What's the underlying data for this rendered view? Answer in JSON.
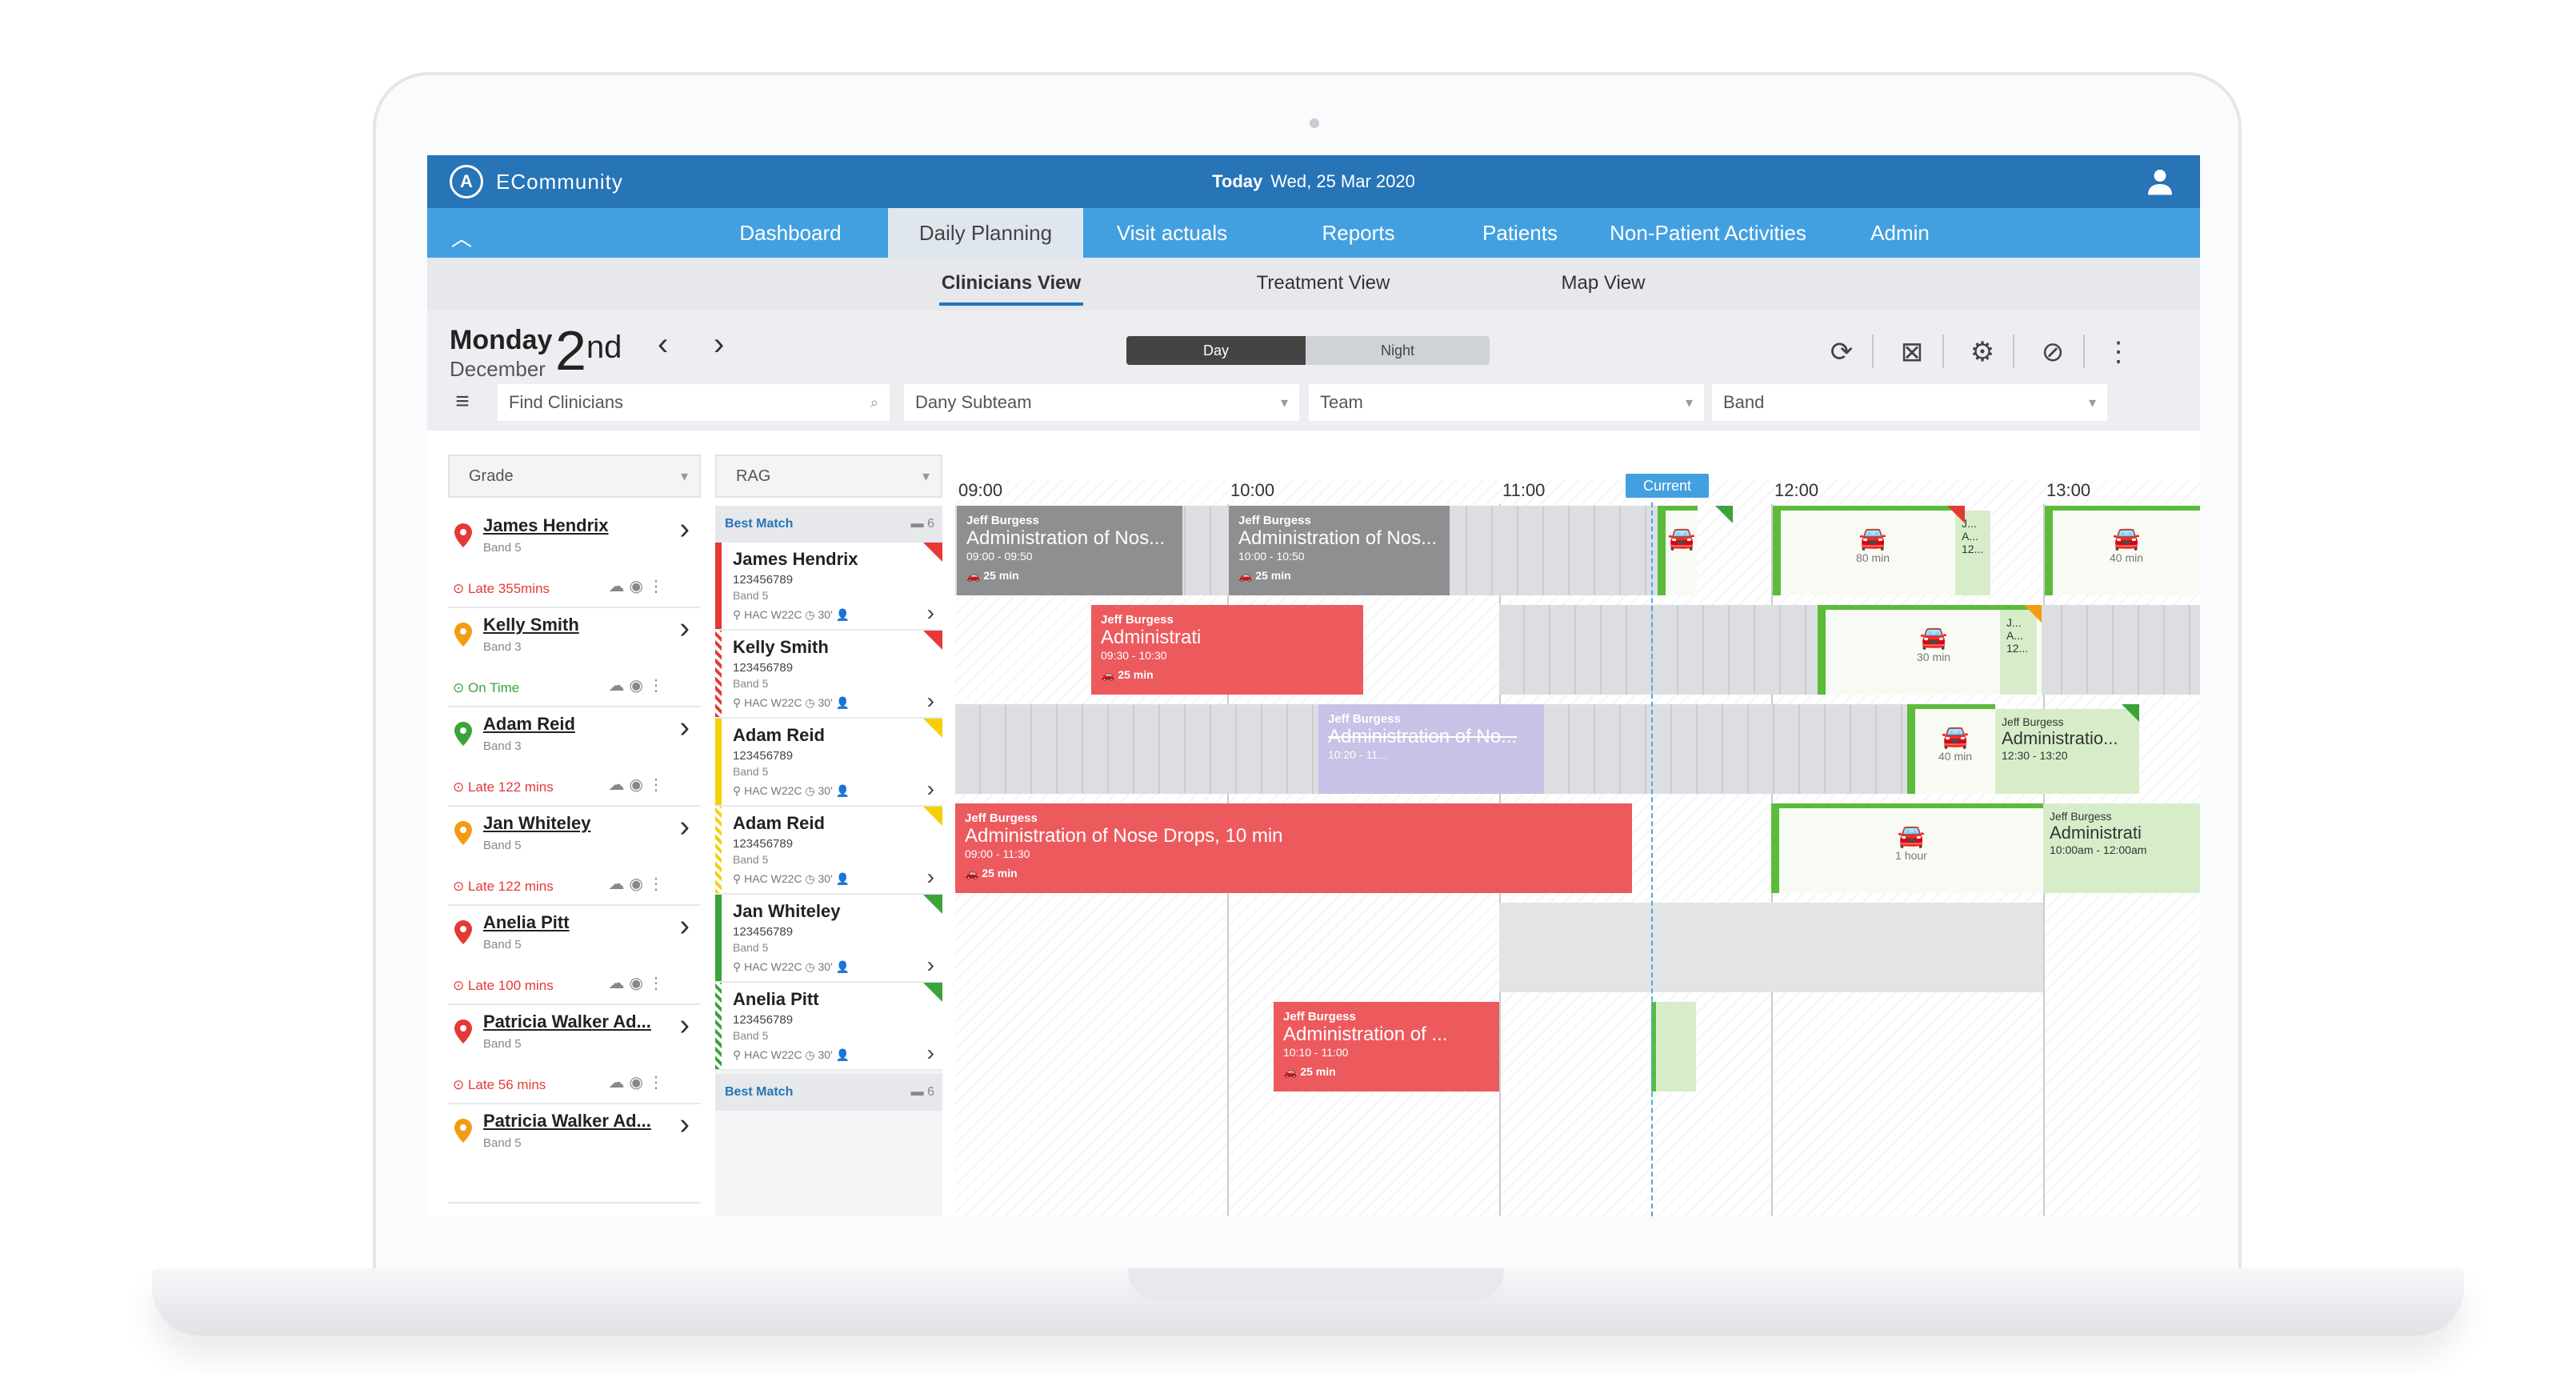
{
  "app": {
    "name": "ECommunity",
    "today_label": "Today",
    "today_date": "Wed, 25 Mar 2020"
  },
  "nav": {
    "items": [
      "Dashboard",
      "Daily Planning",
      "Visit actuals",
      "Reports",
      "Patients",
      "Non-Patient Activities",
      "Admin"
    ],
    "active": "Daily Planning"
  },
  "subnav": {
    "items": [
      "Clinicians View",
      "Treatment View",
      "Map View"
    ],
    "active": "Clinicians View"
  },
  "date": {
    "day_name": "Monday",
    "month": "December",
    "day_number": "2",
    "suffix": "nd"
  },
  "toggle": {
    "day": "Day",
    "night": "Night"
  },
  "filters": {
    "search_placeholder": "Find Clinicians",
    "subteam": "Dany Subteam",
    "team": "Team",
    "band": "Band",
    "grade": "Grade",
    "rag": "RAG"
  },
  "clinicians": [
    {
      "name": "James Hendrix",
      "band": "Band 5",
      "status": "Late 355mins",
      "status_type": "late",
      "pin": "#e53935"
    },
    {
      "name": "Kelly Smith",
      "band": "Band 3",
      "status": "On Time",
      "status_type": "ok",
      "pin": "#f39c12"
    },
    {
      "name": "Adam Reid",
      "band": "Band 3",
      "status": "Late 122 mins",
      "status_type": "late",
      "pin": "#3aa33a"
    },
    {
      "name": "Jan Whiteley",
      "band": "Band 5",
      "status": "Late 122 mins",
      "status_type": "late",
      "pin": "#f39c12"
    },
    {
      "name": "Anelia Pitt",
      "band": "Band 5",
      "status": "Late 100 mins",
      "status_type": "late",
      "pin": "#e53935"
    },
    {
      "name": "Patricia Walker Ad...",
      "band": "Band 5",
      "status": "Late 56 mins",
      "status_type": "late",
      "pin": "#e53935"
    },
    {
      "name": "Patricia Walker Ad...",
      "band": "Band 5",
      "status": "",
      "status_type": "late",
      "pin": "#f39c12"
    }
  ],
  "rag": {
    "best_match": "Best Match",
    "best_match_count": "6",
    "items": [
      {
        "name": "James Hendrix",
        "id": "123456789",
        "band": "Band 5",
        "meta": "HAC W22C",
        "mins": "30'",
        "color": "#e53935"
      },
      {
        "name": "Kelly Smith",
        "id": "123456789",
        "band": "Band 5",
        "meta": "HAC W22C",
        "mins": "30'",
        "color": "#e53935"
      },
      {
        "name": "Adam Reid",
        "id": "123456789",
        "band": "Band 5",
        "meta": "HAC W22C",
        "mins": "30'",
        "color": "#f5d000"
      },
      {
        "name": "Adam Reid",
        "id": "123456789",
        "band": "Band 5",
        "meta": "HAC W22C",
        "mins": "30'",
        "color": "#f5d000"
      },
      {
        "name": "Jan Whiteley",
        "id": "123456789",
        "band": "Band 5",
        "meta": "HAC W22C",
        "mins": "30'",
        "color": "#3aa33a"
      },
      {
        "name": "Anelia Pitt",
        "id": "123456789",
        "band": "Band 5",
        "meta": "HAC W22C",
        "mins": "30'",
        "color": "#3aa33a"
      }
    ]
  },
  "timeline": {
    "hours": [
      "09:00",
      "10:00",
      "11:00",
      "12:00",
      "13:00"
    ],
    "current_label": "Current",
    "events": {
      "e1": {
        "who": "Jeff Burgess",
        "title": "Administration of Nos...",
        "time": "09:00 - 09:50",
        "dur": "25 min"
      },
      "e2": {
        "who": "Jeff Burgess",
        "title": "Administration of Nos...",
        "time": "10:00 - 10:50",
        "dur": "25 min"
      },
      "e3": {
        "who": "Jeff Burgess",
        "title": "Administrati",
        "time": "09:30 - 10:30",
        "dur": "25 min"
      },
      "e4": {
        "who": "Jeff Burgess",
        "title": "Administration of No...",
        "time": "10:20 - 11..."
      },
      "e5": {
        "who": "Jeff Burgess",
        "title": "Administration of Nose Drops, 10 min",
        "time": "09:00 - 11:30",
        "dur": "25 min"
      },
      "e6": {
        "who": "Jeff Burgess",
        "title": "Administration of ...",
        "time": "10:10 - 11:00",
        "dur": "25 min"
      },
      "g1": {
        "who": "Jeff Burgess",
        "title": "Administratio...",
        "time": "12:30 - 13:20"
      },
      "g2": {
        "who": "Jeff Burgess",
        "title": "Administrati",
        "time": "10:00am - 12:00am"
      },
      "g3": {
        "who": "J...",
        "title": "A...",
        "time": "12..."
      },
      "g4": {
        "who": "J...",
        "title": "A...",
        "time": "12..."
      }
    },
    "travel": {
      "t1": "80 min",
      "t2": "30 min",
      "t3": "40 min",
      "t4": "1 hour",
      "t5": "40 min"
    }
  }
}
